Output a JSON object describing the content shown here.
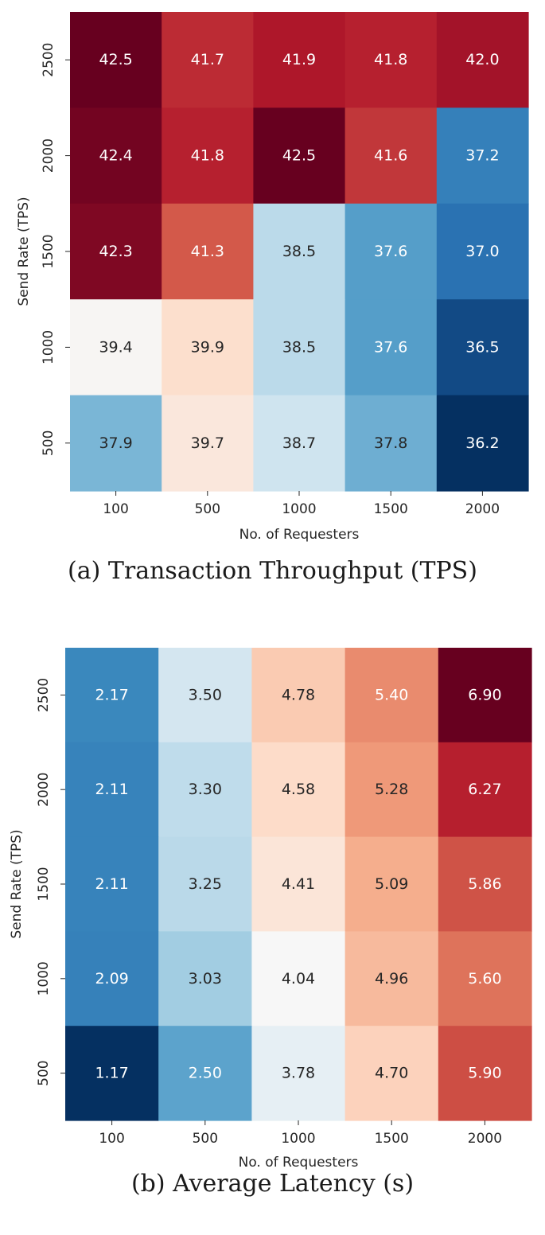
{
  "chart_data": [
    {
      "type": "heatmap",
      "title": "",
      "caption": "(a) Transaction Throughput (TPS)",
      "xlabel": "No. of Requesters",
      "ylabel": "Send Rate (TPS)",
      "x_categories": [
        "100",
        "500",
        "1000",
        "1500",
        "2000"
      ],
      "y_categories": [
        "2500",
        "2000",
        "1500",
        "1000",
        "500"
      ],
      "values": [
        [
          42.5,
          41.7,
          41.9,
          41.8,
          42.0
        ],
        [
          42.4,
          41.8,
          42.5,
          41.6,
          37.2
        ],
        [
          42.3,
          41.3,
          38.5,
          37.6,
          37.0
        ],
        [
          39.4,
          39.9,
          38.5,
          37.6,
          36.5
        ],
        [
          37.9,
          39.7,
          38.7,
          37.8,
          36.2
        ]
      ],
      "value_labels": [
        [
          "42.5",
          "41.7",
          "41.9",
          "41.8",
          "42.0"
        ],
        [
          "42.4",
          "41.8",
          "42.5",
          "41.6",
          "37.2"
        ],
        [
          "42.3",
          "41.3",
          "38.5",
          "37.6",
          "37.0"
        ],
        [
          "39.4",
          "39.9",
          "38.5",
          "37.6",
          "36.5"
        ],
        [
          "37.9",
          "39.7",
          "38.7",
          "37.8",
          "36.2"
        ]
      ],
      "colormap": "RdBu_r",
      "vmin": 36.2,
      "vmax": 42.5
    },
    {
      "type": "heatmap",
      "title": "",
      "caption": "(b) Average Latency (s)",
      "xlabel": "No. of Requesters",
      "ylabel": "Send Rate (TPS)",
      "x_categories": [
        "100",
        "500",
        "1000",
        "1500",
        "2000"
      ],
      "y_categories": [
        "2500",
        "2000",
        "1500",
        "1000",
        "500"
      ],
      "values": [
        [
          2.17,
          3.5,
          4.78,
          5.4,
          6.9
        ],
        [
          2.11,
          3.3,
          4.58,
          5.28,
          6.27
        ],
        [
          2.11,
          3.25,
          4.41,
          5.09,
          5.86
        ],
        [
          2.09,
          3.03,
          4.04,
          4.96,
          5.6
        ],
        [
          1.17,
          2.5,
          3.78,
          4.7,
          5.9
        ]
      ],
      "value_labels": [
        [
          "2.17",
          "3.50",
          "4.78",
          "5.40",
          "6.90"
        ],
        [
          "2.11",
          "3.30",
          "4.58",
          "5.28",
          "6.27"
        ],
        [
          "2.11",
          "3.25",
          "4.41",
          "5.09",
          "5.86"
        ],
        [
          "2.09",
          "3.03",
          "4.04",
          "4.96",
          "5.60"
        ],
        [
          "1.17",
          "2.50",
          "3.78",
          "4.70",
          "5.90"
        ]
      ],
      "colormap": "RdBu_r",
      "vmin": 1.17,
      "vmax": 6.9
    }
  ],
  "colormap_stops": [
    "#053061",
    "#2166ac",
    "#4393c3",
    "#92c5de",
    "#d1e5f0",
    "#f7f7f7",
    "#fddbc7",
    "#f4a582",
    "#d6604d",
    "#b2182b",
    "#67001f"
  ]
}
